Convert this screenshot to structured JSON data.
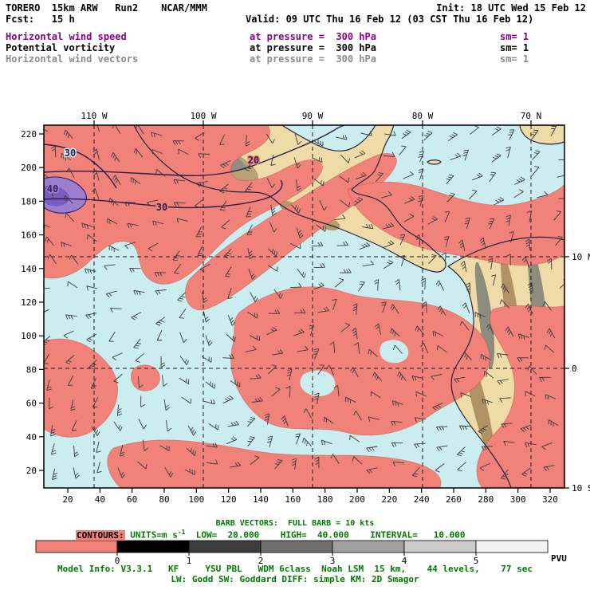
{
  "header": {
    "model_line_left": "TORERO  15km ARW   Run2    NCAR/MMM",
    "init": "Init: 18 UTC Wed 15 Feb 12",
    "fcst": "Fcst:   15 h",
    "valid": "Valid: 09 UTC Thu 16 Feb 12 (03 CST Thu 16 Feb 12)",
    "fields": [
      {
        "label": "Horizontal wind speed",
        "pressure": "at pressure =  300 hPa",
        "sm": "sm= 1"
      },
      {
        "label": "Potential vorticity",
        "pressure": "at pressure =  300 hPa",
        "sm": "sm= 1"
      },
      {
        "label": "Horizontal wind vectors",
        "pressure": "at pressure =  300 hPa",
        "sm": "sm= 1"
      }
    ]
  },
  "map": {
    "top_ticks": [
      "110 W",
      "100 W",
      "90 W",
      "80 W",
      "70 N"
    ],
    "left_ticks": [
      "220",
      "200",
      "180",
      "160",
      "140",
      "120",
      "100",
      "80",
      "60",
      "40",
      "20"
    ],
    "bottom_ticks": [
      "20",
      "40",
      "60",
      "80",
      "100",
      "120",
      "140",
      "160",
      "180",
      "200",
      "220",
      "240",
      "260",
      "280",
      "300",
      "320"
    ],
    "right_ticks": [
      "10 N",
      "0",
      "10 S"
    ],
    "contour_labels": [
      {
        "text": "30"
      },
      {
        "text": "40"
      },
      {
        "text": "30"
      },
      {
        "text": "20"
      }
    ]
  },
  "legend": {
    "barb_vectors": "BARB VECTORS:  FULL BARB = 10 kts",
    "contours_label": "CONTOURS:",
    "units_prefix": " UNITS=m s",
    "units_sup": "-1",
    "values": "  LOW=  20.000    HIGH=  40.000    INTERVAL=   10.000",
    "colorbar_ticks": [
      "0",
      "1",
      "2",
      "3",
      "4",
      "5"
    ],
    "pvu": "PVU",
    "model_info_1": "Model Info: V3.3.1   KF     YSU PBL   WDM 6class  Noah LSM  15 km,    44 levels,    77 sec",
    "model_info_2": "LW: Godd SW: Goddard DIFF: simple KM: 2D Smagor"
  },
  "colors": {
    "magenta": "#8B008B",
    "gray_text": "#8C8C8C",
    "green": "#007A00",
    "salmon": "#F18279",
    "ocean": "#CBEDEF",
    "land": "#EFDBA8",
    "purple_fill": "#9C7ECE",
    "contour": "#2B1B4E",
    "colorbar": [
      "#F18279",
      "#000000",
      "#3C3C3C",
      "#6F6F6F",
      "#A0A0A0",
      "#CCCCCC",
      "#F2F2F2"
    ]
  }
}
